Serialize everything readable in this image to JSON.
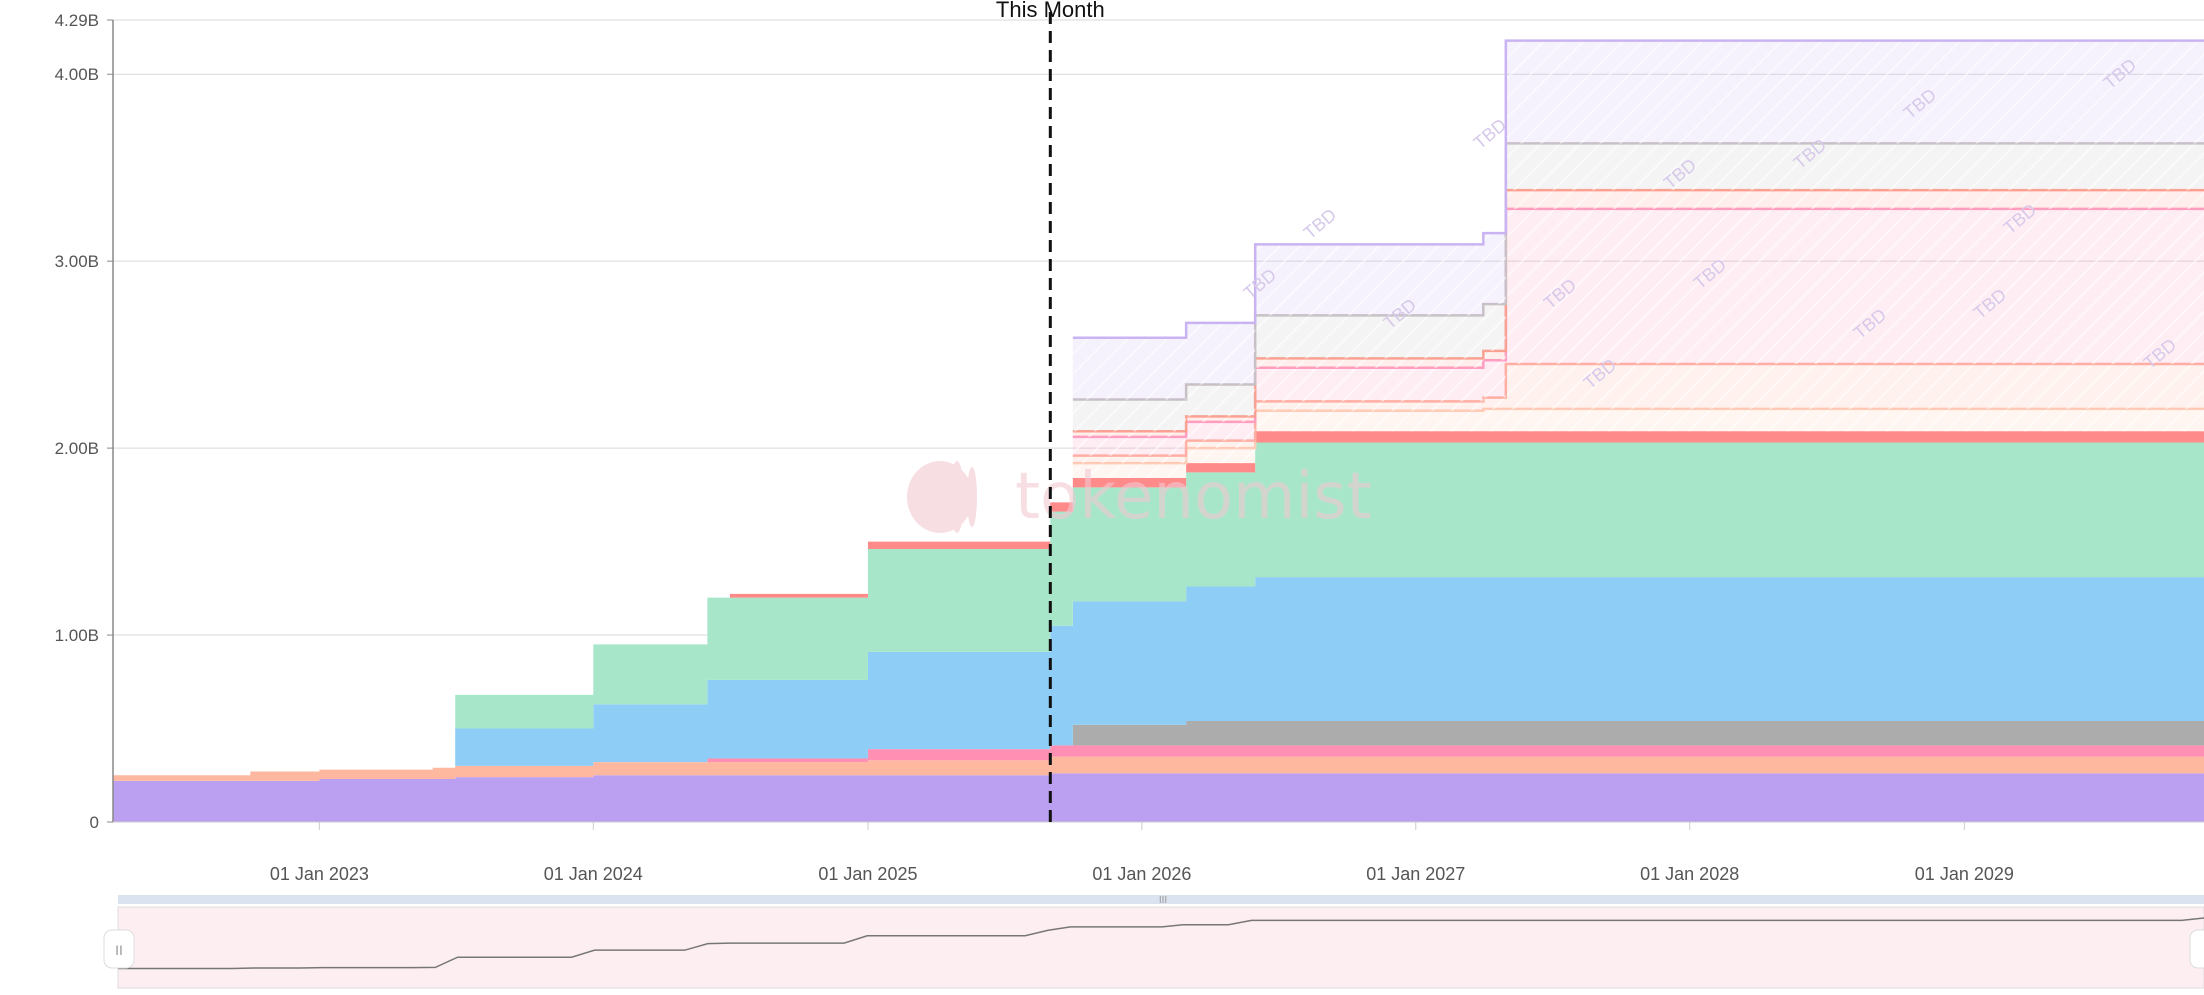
{
  "chart_data": {
    "type": "area",
    "stacked": true,
    "title": "",
    "xlabel": "",
    "ylabel": "",
    "x_range": [
      "2022-04-01",
      "2029-12-01"
    ],
    "x_ticks": [
      "01 Jan 2023",
      "01 Jan 2024",
      "01 Jan 2025",
      "01 Jan 2026",
      "01 Jan 2027",
      "01 Jan 2028",
      "01 Jan 2029"
    ],
    "ylim": [
      0,
      4290000000
    ],
    "y_ticks": [
      {
        "value": 0,
        "label": "0"
      },
      {
        "value": 1000000000,
        "label": "1.00B"
      },
      {
        "value": 2000000000,
        "label": "2.00B"
      },
      {
        "value": 3000000000,
        "label": "3.00B"
      },
      {
        "value": 4000000000,
        "label": "4.00B"
      },
      {
        "value": 4290000000,
        "label": "4.29B"
      }
    ],
    "grid": true,
    "marker": {
      "label": "This Month",
      "x": "2025-09-01"
    },
    "watermark": "tokenomist",
    "tbd_label": "TBD",
    "series": [
      {
        "color": "#bba0f2",
        "points": [
          [
            "2022-04-01",
            0.22
          ],
          [
            "2022-10-01",
            0.22
          ],
          [
            "2023-01-01",
            0.23
          ],
          [
            "2023-07-01",
            0.24
          ],
          [
            "2024-01-01",
            0.25
          ],
          [
            "2025-06-01",
            0.25
          ],
          [
            "2025-09-01",
            0.26
          ],
          [
            "2029-12-01",
            0.26
          ]
        ]
      },
      {
        "color": "#ffb8a0",
        "points": [
          [
            "2022-04-01",
            0.03
          ],
          [
            "2022-10-01",
            0.05
          ],
          [
            "2023-06-01",
            0.06
          ],
          [
            "2024-01-01",
            0.07
          ],
          [
            "2025-01-01",
            0.08
          ],
          [
            "2025-09-01",
            0.09
          ],
          [
            "2029-12-01",
            0.09
          ]
        ]
      },
      {
        "color": "#ff8fb3",
        "points": [
          [
            "2022-04-01",
            0.0
          ],
          [
            "2024-01-01",
            0.0
          ],
          [
            "2024-06-01",
            0.02
          ],
          [
            "2025-01-01",
            0.06
          ],
          [
            "2025-09-01",
            0.06
          ],
          [
            "2029-12-01",
            0.06
          ]
        ]
      },
      {
        "color": "#acacac",
        "points": [
          [
            "2022-04-01",
            0.0
          ],
          [
            "2025-09-01",
            0.0
          ],
          [
            "2025-10-01",
            0.11
          ],
          [
            "2026-03-01",
            0.13
          ],
          [
            "2029-12-01",
            0.13
          ]
        ]
      },
      {
        "color": "#8ecdf5",
        "points": [
          [
            "2022-04-01",
            0.0
          ],
          [
            "2023-06-01",
            0.0
          ],
          [
            "2023-07-01",
            0.2
          ],
          [
            "2024-01-01",
            0.31
          ],
          [
            "2024-06-01",
            0.42
          ],
          [
            "2025-01-01",
            0.52
          ],
          [
            "2025-09-01",
            0.64
          ],
          [
            "2025-10-01",
            0.66
          ],
          [
            "2026-03-01",
            0.72
          ],
          [
            "2026-06-01",
            0.77
          ],
          [
            "2029-12-01",
            0.81
          ]
        ]
      },
      {
        "color": "#a8e6c9",
        "points": [
          [
            "2022-04-01",
            0.0
          ],
          [
            "2023-06-01",
            0.0
          ],
          [
            "2023-07-01",
            0.18
          ],
          [
            "2024-01-01",
            0.32
          ],
          [
            "2024-06-01",
            0.44
          ],
          [
            "2025-01-01",
            0.55
          ],
          [
            "2025-09-01",
            0.61
          ],
          [
            "2026-06-01",
            0.72
          ],
          [
            "2029-12-01",
            0.73
          ]
        ]
      },
      {
        "color": "#ff8a8a",
        "points": [
          [
            "2022-04-01",
            0.0
          ],
          [
            "2024-06-01",
            0.0
          ],
          [
            "2024-07-01",
            0.02
          ],
          [
            "2025-01-01",
            0.04
          ],
          [
            "2025-09-01",
            0.05
          ],
          [
            "2026-06-01",
            0.06
          ],
          [
            "2029-12-01",
            0.1
          ]
        ]
      }
    ],
    "projected_series": [
      {
        "color": "#ffcdb8",
        "points": [
          [
            "2025-10-01",
            0.08
          ],
          [
            "2026-06-01",
            0.11
          ],
          [
            "2027-04-01",
            0.12
          ],
          [
            "2027-05-01",
            0.12
          ],
          [
            "2029-12-01",
            0.14
          ]
        ]
      },
      {
        "color": "#ffb0a0",
        "points": [
          [
            "2025-10-01",
            0.04
          ],
          [
            "2026-06-01",
            0.05
          ],
          [
            "2027-04-01",
            0.06
          ],
          [
            "2027-05-01",
            0.24
          ],
          [
            "2029-12-01",
            0.24
          ]
        ]
      },
      {
        "color": "#ff9dc4",
        "points": [
          [
            "2025-10-01",
            0.1
          ],
          [
            "2026-06-01",
            0.18
          ],
          [
            "2027-04-01",
            0.2
          ],
          [
            "2027-05-01",
            0.83
          ],
          [
            "2029-12-01",
            0.8
          ]
        ]
      },
      {
        "color": "#ff9e8e",
        "points": [
          [
            "2025-10-01",
            0.03
          ],
          [
            "2026-06-01",
            0.05
          ],
          [
            "2027-04-01",
            0.05
          ],
          [
            "2027-05-01",
            0.1
          ],
          [
            "2029-12-01",
            0.1
          ]
        ]
      },
      {
        "color": "#c8c2c2",
        "points": [
          [
            "2025-10-01",
            0.17
          ],
          [
            "2026-06-01",
            0.23
          ],
          [
            "2027-04-01",
            0.25
          ],
          [
            "2027-05-01",
            0.25
          ],
          [
            "2029-12-01",
            0.25
          ]
        ]
      },
      {
        "color": "#c9b3f2",
        "points": [
          [
            "2025-10-01",
            0.33
          ],
          [
            "2026-06-01",
            0.38
          ],
          [
            "2027-04-01",
            0.38
          ],
          [
            "2027-05-01",
            0.55
          ],
          [
            "2029-12-01",
            0.56
          ]
        ]
      }
    ],
    "navigator": {
      "line_color": "#777777"
    }
  }
}
